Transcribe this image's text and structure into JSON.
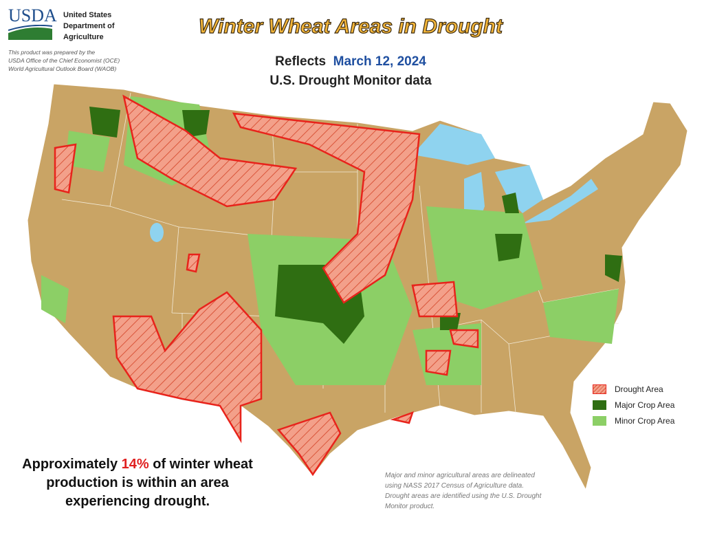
{
  "header": {
    "logo": "USDA",
    "agency": [
      "United States",
      "Department of",
      "Agriculture"
    ],
    "prepared_by": [
      "This product was prepared by the",
      "USDA Office of the Chief Economist (OCE)",
      "World Agricultural Outlook Board (WAOB)"
    ],
    "title": "Winter Wheat Areas in Drought",
    "subtitle": {
      "prefix": "Reflects",
      "date": "March 12, 2024",
      "source": "U.S. Drought Monitor data"
    }
  },
  "legend": [
    {
      "label": "Drought Area"
    },
    {
      "label": "Major Crop Area"
    },
    {
      "label": "Minor Crop Area"
    }
  ],
  "summary": {
    "before": "Approximately ",
    "percent": "14%",
    "after": " of winter wheat production is within an area experiencing drought."
  },
  "footnote": "Major and minor agricultural areas are delineated using NASS 2017 Census of Agriculture data.  Drought areas are identified using the U.S. Drought Monitor product."
}
